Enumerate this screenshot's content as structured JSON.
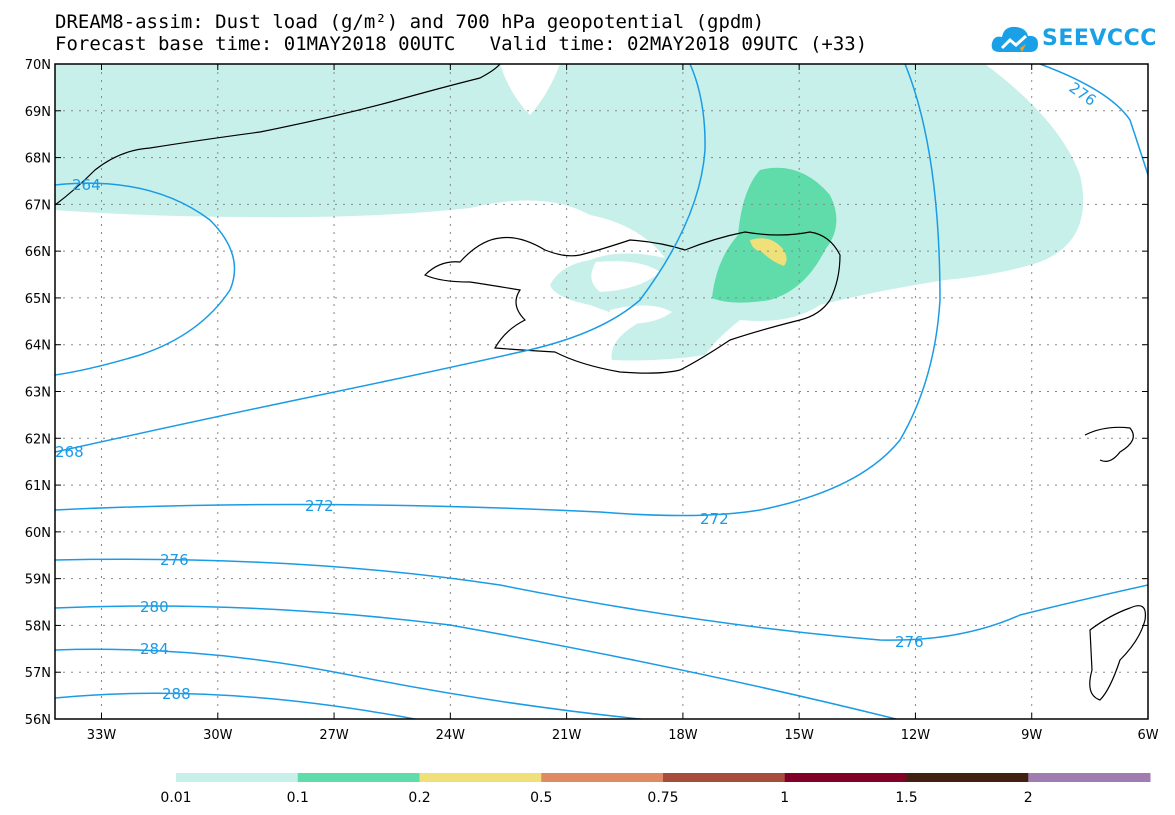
{
  "header": {
    "title_line1": "DREAM8-assim: Dust load (g/m²) and 700 hPa geopotential (gpdm)",
    "title_line2": "Forecast base time: 01MAY2018 00UTC   Valid time: 02MAY2018 09UTC (+33)"
  },
  "logo": {
    "text": "SEEVCCC",
    "color": "#1aa0e6"
  },
  "map": {
    "lat_labels": [
      "70N",
      "69N",
      "68N",
      "67N",
      "66N",
      "65N",
      "64N",
      "63N",
      "62N",
      "61N",
      "60N",
      "59N",
      "58N",
      "57N",
      "56N"
    ],
    "lon_labels": [
      "33W",
      "30W",
      "27W",
      "24W",
      "21W",
      "18W",
      "15W",
      "12W",
      "9W",
      "6W"
    ],
    "contour_labels": [
      "264",
      "268",
      "272",
      "272",
      "276",
      "276",
      "276",
      "280",
      "284",
      "288"
    ],
    "contour_color": "#1a9be6",
    "dust_colors": {
      "d001": "#c8f0ea",
      "d01": "#5fdcaa",
      "d02": "#f0e07a"
    }
  },
  "colorbar": {
    "ticks": [
      "0.01",
      "0.1",
      "0.2",
      "0.5",
      "0.75",
      "1",
      "1.5",
      "2"
    ],
    "colors": [
      "#c8f0ea",
      "#5fdcaa",
      "#f0e07a",
      "#e08a64",
      "#a84c3c",
      "#800028",
      "#402010",
      "#a07cb0"
    ]
  }
}
